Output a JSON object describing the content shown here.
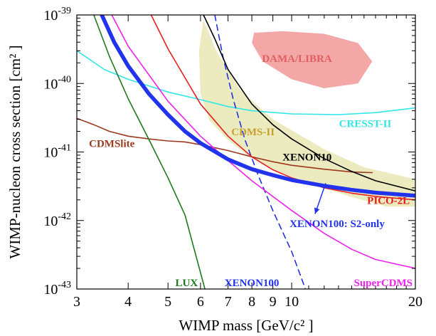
{
  "chart_data": {
    "type": "line",
    "xlabel": "WIMP mass [GeV/c² ]",
    "ylabel": "WIMP-nucleon cross section [cm² ]",
    "xscale": "log",
    "yscale": "log",
    "xlim": [
      3,
      20
    ],
    "ylim": [
      1e-43,
      1e-39
    ],
    "grid": false,
    "legend": "none",
    "x_ticks": [
      {
        "value": 3,
        "label": "3"
      },
      {
        "value": 4,
        "label": "4"
      },
      {
        "value": 5,
        "label": "5"
      },
      {
        "value": 6,
        "label": "6"
      },
      {
        "value": 7,
        "label": "7"
      },
      {
        "value": 8,
        "label": "8"
      },
      {
        "value": 9,
        "label": "9"
      },
      {
        "value": 10,
        "label": "10"
      },
      {
        "value": 20,
        "label": "20"
      }
    ],
    "y_ticks": [
      {
        "value": 1e-39,
        "base": "10",
        "exp": "-39"
      },
      {
        "value": 1e-40,
        "base": "10",
        "exp": "-40"
      },
      {
        "value": 1e-41,
        "base": "10",
        "exp": "-41"
      },
      {
        "value": 1e-42,
        "base": "10",
        "exp": "-42"
      },
      {
        "value": 1e-43,
        "base": "10",
        "exp": "-43"
      }
    ],
    "regions": [
      {
        "name": "DAMA/LIBRA",
        "color": "#f4a7a7",
        "points": [
          [
            8.1,
            5.5e-40
          ],
          [
            9.5,
            5.8e-40
          ],
          [
            12,
            5.3e-40
          ],
          [
            14.5,
            3.9e-40
          ],
          [
            15.7,
            2.1e-40
          ],
          [
            14.5,
            1e-40
          ],
          [
            12,
            8.5e-41
          ],
          [
            10,
            1.15e-40
          ],
          [
            8.5,
            2.1e-40
          ],
          [
            8.0,
            3.9e-40
          ]
        ]
      },
      {
        "name": "CDMS-II",
        "color": "#ecebc0",
        "points": [
          [
            6.1,
            8.5e-40
          ],
          [
            6.55,
            3e-40
          ],
          [
            7.5,
            8e-41
          ],
          [
            9,
            3e-41
          ],
          [
            12,
            1.1e-41
          ],
          [
            15,
            6e-42
          ],
          [
            20,
            4e-42
          ],
          [
            20,
            1.6e-42
          ],
          [
            17,
            1.6e-42
          ],
          [
            14,
            2.2e-42
          ],
          [
            11,
            3.5e-42
          ],
          [
            9,
            5.5e-42
          ],
          [
            7.8,
            9e-42
          ],
          [
            7,
            1.5e-41
          ],
          [
            6.3,
            2.9e-41
          ],
          [
            6.0,
            7e-41
          ],
          [
            5.95,
            3e-40
          ]
        ]
      }
    ],
    "series": [
      {
        "name": "CRESST-II",
        "color": "#33e6e6",
        "width": 1.6,
        "dash": false,
        "x": [
          3,
          3.5,
          4,
          5,
          6,
          7,
          8,
          10,
          13,
          16,
          20
        ],
        "y": [
          3e-40,
          1.6e-40,
          1.15e-40,
          7.5e-41,
          5.8e-41,
          4.6e-41,
          4e-41,
          3.6e-41,
          3.5e-41,
          3.75e-41,
          4.4e-41
        ]
      },
      {
        "name": "CDMSlite",
        "color": "#9b3a1e",
        "width": 1.6,
        "dash": false,
        "x": [
          3,
          3.3,
          3.6,
          4,
          4.5,
          5,
          5.5,
          6,
          7,
          8,
          9,
          10,
          12,
          14,
          15.7
        ],
        "y": [
          3.1e-41,
          2.5e-41,
          2e-41,
          1.7e-41,
          1.55e-41,
          1.45e-41,
          1.4e-41,
          1.28e-41,
          1.05e-41,
          8.5e-42,
          7.2e-42,
          6.4e-42,
          5.6e-42,
          5.1e-42,
          5e-42
        ]
      },
      {
        "name": "LUX",
        "color": "#1f7a1f",
        "width": 1.6,
        "dash": false,
        "x": [
          3.3,
          3.6,
          4,
          4.5,
          5,
          5.5,
          6.15
        ],
        "y": [
          1e-39,
          2.5e-40,
          6e-41,
          1.5e-41,
          4.2e-42,
          1.2e-42,
          1e-43
        ]
      },
      {
        "name": "XENON100",
        "color": "#2233dd",
        "width": 1.6,
        "dash": true,
        "x": [
          6.5,
          6.8,
          7.2,
          7.7,
          8.3,
          9,
          10,
          10.8
        ],
        "y": [
          1e-39,
          2.5e-40,
          6e-41,
          1.5e-41,
          4.5e-42,
          1.4e-42,
          3.5e-43,
          1e-43
        ]
      },
      {
        "name": "SuperCDMS",
        "color": "#ee22ee",
        "width": 1.6,
        "dash": false,
        "x": [
          3.65,
          4,
          5,
          6,
          7,
          8,
          10,
          12,
          14,
          16,
          20
        ],
        "y": [
          1e-39,
          3.5e-40,
          5.5e-41,
          1.7e-41,
          7.5e-42,
          3.8e-42,
          1.4e-42,
          6.5e-43,
          3.8e-43,
          2.7e-43,
          2e-43
        ]
      },
      {
        "name": "PICO-2L",
        "color": "#e62020",
        "width": 1.6,
        "dash": false,
        "x": [
          4.55,
          5,
          6,
          7,
          8,
          9,
          10,
          12,
          14,
          16,
          20
        ],
        "y": [
          1e-39,
          3.2e-40,
          5e-41,
          1.7e-41,
          8.5e-42,
          5.5e-42,
          4.2e-42,
          3e-42,
          2.5e-42,
          2.25e-42,
          2e-42
        ]
      },
      {
        "name": "XENON10",
        "color": "#000000",
        "width": 1.6,
        "dash": false,
        "x": [
          6.1,
          6.5,
          7,
          8,
          9,
          10,
          12,
          14,
          16,
          20
        ],
        "y": [
          1e-39,
          4.5e-40,
          1.6e-40,
          5e-41,
          2.5e-41,
          1.55e-41,
          8e-42,
          5.2e-42,
          3.8e-42,
          2.7e-42
        ]
      },
      {
        "name": "XENON100: S2-only",
        "color": "#2233ee",
        "width": 5.5,
        "dash": false,
        "x": [
          3.45,
          3.7,
          4,
          4.5,
          5,
          5.5,
          6,
          7,
          8,
          9,
          10,
          12,
          14,
          16,
          20
        ],
        "y": [
          1e-39,
          4e-40,
          1.8e-40,
          7e-41,
          3.5e-41,
          2e-41,
          1.35e-41,
          7.8e-42,
          5.6e-42,
          4.6e-42,
          3.9e-42,
          3.2e-42,
          2.8e-42,
          2.55e-42,
          2.3e-42
        ]
      }
    ],
    "labels": [
      {
        "text": "DAMA/LIBRA",
        "color": "#e06060",
        "x": 10.3,
        "y": 2.05e-40
      },
      {
        "text": "CRESST-II",
        "color": "#33e6e6",
        "x": 15.1,
        "y": 2.3e-41
      },
      {
        "text": "CDMS-II",
        "color": "#c9a12e",
        "x": 8.05,
        "y": 1.75e-41
      },
      {
        "text": "XENON10",
        "color": "#000000",
        "x": 10.9,
        "y": 7.5e-42
      },
      {
        "text": "CDMSlite",
        "color": "#9b3a1e",
        "x": 3.65,
        "y": 1.18e-41
      },
      {
        "text": "PICO-2L",
        "color": "#e62020",
        "x": 17.2,
        "y": 1.75e-42
      },
      {
        "text": "XENON100: S2-only",
        "color": "#2233ee",
        "x": 12.9,
        "y": 8e-43
      },
      {
        "text": "LUX",
        "color": "#1f7a1f",
        "x": 5.55,
        "y": 1.1e-43
      },
      {
        "text": "XENON100",
        "color": "#2233ee",
        "x": 8.0,
        "y": 1.1e-43
      },
      {
        "text": "SuperCDMS",
        "color": "#ee22ee",
        "x": 16.7,
        "y": 1.1e-43
      }
    ],
    "annotation_arrow": {
      "color": "#2233ee",
      "from": [
        12.1,
        3.5e-42
      ],
      "to": [
        11.4,
        1.25e-42
      ]
    }
  }
}
